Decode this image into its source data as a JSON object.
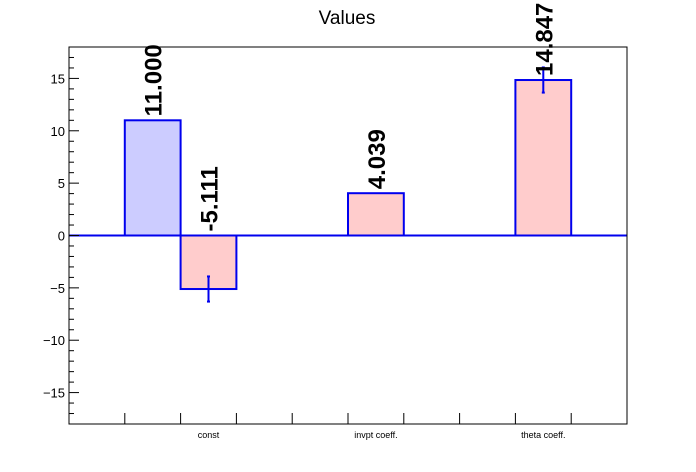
{
  "chart_data": {
    "type": "bar",
    "title": "Values",
    "xlabel": "",
    "ylabel": "",
    "ylim": [
      -18,
      18
    ],
    "yticks": [
      -15,
      -10,
      -5,
      0,
      5,
      10,
      15
    ],
    "ytick_labels": [
      "−15",
      "−10",
      "−5",
      "0",
      "5",
      "10",
      "15"
    ],
    "categories": [
      "const",
      "invpt coeff.",
      "theta coeff."
    ],
    "bars": [
      {
        "category": "const",
        "value": 11.0,
        "error": 0.0,
        "label": "11.000",
        "color": "#ccccff"
      },
      {
        "category": "const",
        "value": -5.111,
        "error": 1.2,
        "label": "-5.111",
        "color": "#ffcccc"
      },
      {
        "category": "invpt coeff.",
        "value": 4.039,
        "error": 0.0,
        "label": "4.039",
        "color": "#ffcccc"
      },
      {
        "category": "theta coeff.",
        "value": 14.847,
        "error": 1.2,
        "label": "14.847",
        "color": "#ffcccc"
      }
    ],
    "grid": false,
    "legend": "none",
    "colors": {
      "outline": "#0000ee",
      "axis": "#000000"
    }
  }
}
